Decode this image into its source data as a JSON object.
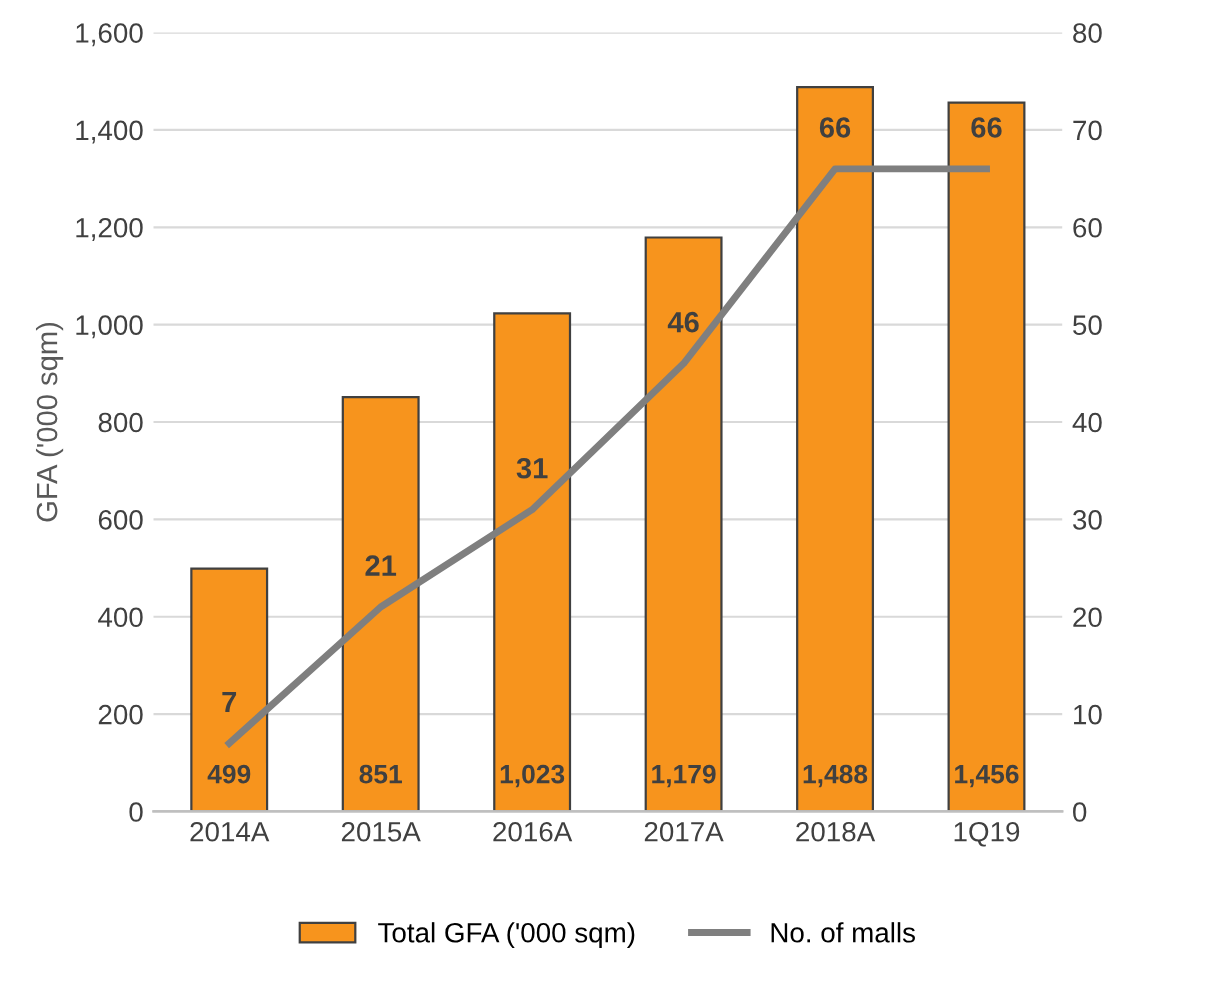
{
  "chart_data": {
    "type": "bar",
    "ylabel": "GFA ('000 sqm)",
    "categories": [
      "2014A",
      "2015A",
      "2016A",
      "2017A",
      "2018A",
      "1Q19"
    ],
    "series": [
      {
        "name": "Total GFA ('000 sqm)",
        "color": "#f7941d",
        "values": [
          499,
          851,
          1023,
          1179,
          1488,
          1456
        ],
        "value_labels": [
          "499",
          "851",
          "1,023",
          "1,179",
          "1,488",
          "1,456"
        ]
      },
      {
        "name": "No. of malls",
        "type": "line",
        "axis": "y2",
        "color": "#7f7f7f",
        "values": [
          7,
          21,
          31,
          46,
          66,
          66
        ],
        "value_labels": [
          "7",
          "21",
          "31",
          "46",
          "66",
          "66"
        ]
      }
    ],
    "ylim": [
      0,
      1600
    ],
    "yticks": [
      {
        "value": 0,
        "label": "0"
      },
      {
        "value": 200,
        "label": "200"
      },
      {
        "value": 400,
        "label": "400"
      },
      {
        "value": 600,
        "label": "600"
      },
      {
        "value": 800,
        "label": "800"
      },
      {
        "value": 1000,
        "label": "1,000"
      },
      {
        "value": 1200,
        "label": "1,200"
      },
      {
        "value": 1400,
        "label": "1,400"
      },
      {
        "value": 1600,
        "label": "1,600"
      }
    ],
    "y2lim": [
      0,
      80
    ],
    "y2ticks": [
      0,
      10,
      20,
      30,
      40,
      50,
      60,
      70,
      80
    ],
    "grid": "y",
    "legend": "bottom",
    "marker": "none",
    "line_style": "solid"
  }
}
